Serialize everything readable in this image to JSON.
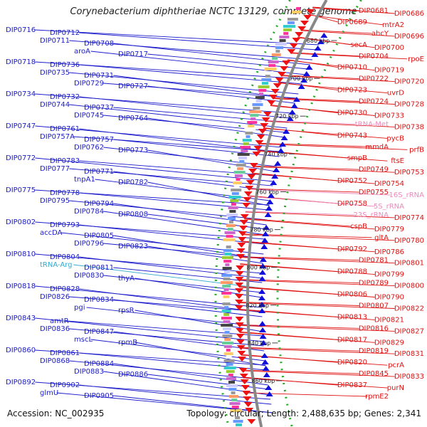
{
  "title": "Corynebacterium diphtheriae NCTC 13129, complete genome",
  "accession": "Accession: NC_002935",
  "summary": "Topology: circular; Length: 2,488,635 bp; Genes: 2,341",
  "colors": {
    "left_labels": "#1a1acc",
    "right_labels": "#e01010",
    "rrna_labels": "#ee88bb",
    "trna_labels": "#33aacc",
    "backbone": "#888888",
    "dotted_ring": "#22aa22",
    "ruler_ticks": "#444444"
  },
  "ruler": [
    {
      "label": "680 kbp"
    },
    {
      "label": "700 kbp"
    },
    {
      "label": "720 kbp"
    },
    {
      "label": "740 kbp"
    },
    {
      "label": "760 kbp"
    },
    {
      "label": "780 kbp"
    },
    {
      "label": "800 kbp"
    },
    {
      "label": "820 kbp"
    },
    {
      "label": "840 kbp"
    },
    {
      "label": "860 kbp"
    }
  ],
  "left_labels": [
    "DIP0716",
    "DIP0712",
    "DIP0711",
    "DIP0708",
    "aroA",
    "DIP0717",
    "DIP0718",
    "DIP0736",
    "DIP0735",
    "DIP0731",
    "DIP0729",
    "DIP0727",
    "DIP0734",
    "DIP0732",
    "DIP0744",
    "DIP0737",
    "DIP0745",
    "DIP0764",
    "DIP0747",
    "DIP0761",
    "DIP0757A",
    "DIP0757",
    "DIP0762",
    "DIP0773",
    "DIP0772",
    "DIP0783",
    "DIP0777",
    "DIP0771",
    "tnpA1",
    "DIP0782",
    "DIP0775",
    "DIP0778",
    "DIP0795",
    "DIP0794",
    "DIP0784",
    "DIP0808",
    "DIP0802",
    "DIP0793",
    "accDA",
    "DIP0805",
    "DIP0796",
    "DIP0823",
    "DIP0810",
    "DIP0804",
    "tRNA-Arg",
    "DIP0811",
    "DIP0830",
    "thyA",
    "DIP0818",
    "DIP0828",
    "DIP0826",
    "DIP0834",
    "pgi",
    "rpsR",
    "DIP0843",
    "amtR",
    "DIP0836",
    "DIP0847",
    "mscL",
    "rpmB",
    "DIP0860",
    "DIP0861",
    "DIP0868",
    "DIP0884",
    "DIP0883",
    "DIP0886",
    "DIP0892",
    "DIP0902",
    "glmU",
    "DIP0905"
  ],
  "right_labels": [
    "DIP0681",
    "DIP0686",
    "DIP0689",
    "mtrA2",
    "ahcY",
    "DIP0696",
    "secA",
    "DIP0700",
    "DIP0704",
    "rpoE",
    "DIP0710",
    "DIP0719",
    "DIP0722",
    "DIP0720",
    "DIP0723",
    "uvrD",
    "DIP0724",
    "DIP0728",
    "DIP0730",
    "DIP0733",
    "tRNA-Met",
    "DIP0738",
    "DIP0743",
    "pycB",
    "mmdA",
    "prfB",
    "smpB",
    "ftsE",
    "DIP0749",
    "DIP0753",
    "DIP0752",
    "DIP0754",
    "DIP0755",
    "16S_rRNA",
    "DIP0758",
    "5S_rRNA",
    "23S_rRNA",
    "DIP0774",
    "cspB",
    "DIP0779",
    "gltA",
    "DIP0780",
    "DIP0792",
    "DIP0786",
    "DIP0781",
    "DIP0801",
    "DIP0788",
    "DIP0799",
    "DIP0789",
    "DIP0800",
    "DIP0806",
    "DIP0790",
    "DIP0807",
    "DIP0822",
    "DIP0813",
    "DIP0821",
    "DIP0816",
    "DIP0827",
    "DIP0817",
    "DIP0829",
    "DIP0819",
    "DIP0831",
    "DIP0820",
    "pcrA",
    "DIP0845",
    "DIP0833",
    "DIP0837",
    "purN",
    "rpmE2"
  ],
  "rrna_label_set": [
    "tRNA-Met",
    "16S_rRNA",
    "5S_rRNA",
    "23S_rRNA"
  ],
  "trna_label_set": [
    "tRNA-Arg"
  ]
}
